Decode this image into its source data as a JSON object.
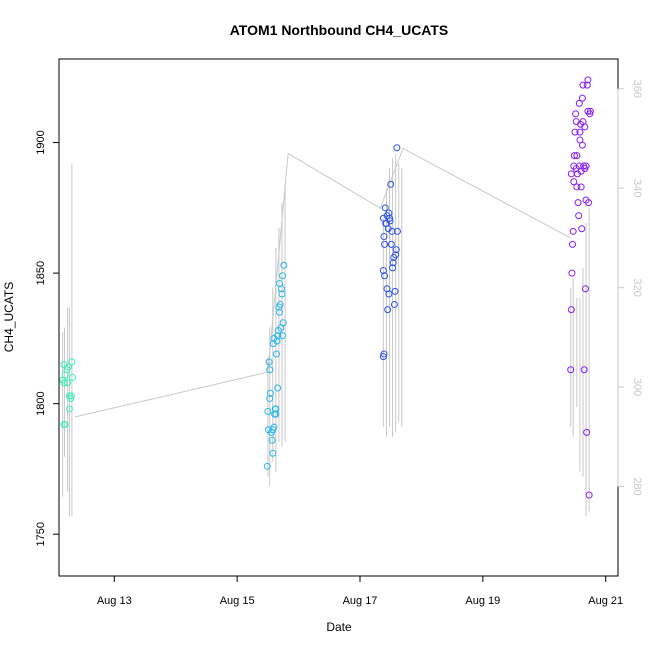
{
  "chart_data": {
    "type": "scatter",
    "title": "ATOM1 Northbound CH4_UCATS",
    "xlabel": "Date",
    "ylabel": "CH4_UCATS",
    "x_unit": "days in August",
    "xlim": [
      12.1,
      21.2
    ],
    "ylim": [
      1734,
      1932
    ],
    "y2lim": [
      262,
      366
    ],
    "x_ticks": [
      {
        "value": 13,
        "label": "Aug 13"
      },
      {
        "value": 15,
        "label": "Aug 15"
      },
      {
        "value": 17,
        "label": "Aug 17"
      },
      {
        "value": 19,
        "label": "Aug 19"
      },
      {
        "value": 21,
        "label": "Aug 21"
      }
    ],
    "y_ticks": [
      1750,
      1800,
      1850,
      1900
    ],
    "y2_ticks": [
      280,
      300,
      320,
      340,
      360
    ],
    "grid": false,
    "legend": "none",
    "colors": {
      "profile_line": "#c8c8c8",
      "right_axis": "#c8c8c8",
      "frame": "#000000"
    },
    "secondary_profile": {
      "description_units": "right axis",
      "vertical_spikes": [
        {
          "x": 12.16,
          "y_bottom": 278,
          "y_top": 311
        },
        {
          "x": 12.19,
          "y_bottom": 286,
          "y_top": 312
        },
        {
          "x": 12.24,
          "y_bottom": 279,
          "y_top": 316
        },
        {
          "x": 12.27,
          "y_bottom": 274,
          "y_top": 316
        },
        {
          "x": 12.31,
          "y_bottom": 274,
          "y_top": 345
        },
        {
          "x": 15.5,
          "y_bottom": 282,
          "y_top": 306
        },
        {
          "x": 15.53,
          "y_bottom": 280,
          "y_top": 312
        },
        {
          "x": 15.58,
          "y_bottom": 285,
          "y_top": 320
        },
        {
          "x": 15.63,
          "y_bottom": 283,
          "y_top": 328
        },
        {
          "x": 15.68,
          "y_bottom": 289,
          "y_top": 332
        },
        {
          "x": 15.73,
          "y_bottom": 288,
          "y_top": 337
        },
        {
          "x": 15.78,
          "y_bottom": 289,
          "y_top": 341
        },
        {
          "x": 17.38,
          "y_bottom": 292,
          "y_top": 334
        },
        {
          "x": 17.43,
          "y_bottom": 290,
          "y_top": 340
        },
        {
          "x": 17.48,
          "y_bottom": 292,
          "y_top": 344
        },
        {
          "x": 17.53,
          "y_bottom": 290,
          "y_top": 346
        },
        {
          "x": 17.58,
          "y_bottom": 291,
          "y_top": 347
        },
        {
          "x": 17.63,
          "y_bottom": 293,
          "y_top": 345
        },
        {
          "x": 17.68,
          "y_bottom": 292,
          "y_top": 344
        },
        {
          "x": 20.43,
          "y_bottom": 292,
          "y_top": 320
        },
        {
          "x": 20.47,
          "y_bottom": 290,
          "y_top": 322
        },
        {
          "x": 20.53,
          "y_bottom": 296,
          "y_top": 318
        },
        {
          "x": 20.58,
          "y_bottom": 283,
          "y_top": 318
        },
        {
          "x": 20.63,
          "y_bottom": 282,
          "y_top": 324
        },
        {
          "x": 20.68,
          "y_bottom": 274,
          "y_top": 333
        },
        {
          "x": 20.73,
          "y_bottom": 275,
          "y_top": 336
        }
      ],
      "connector": [
        {
          "x": 12.36,
          "y": 294
        },
        {
          "x": 15.5,
          "y": 303
        },
        {
          "x": 15.83,
          "y": 347
        },
        {
          "x": 17.33,
          "y": 336
        },
        {
          "x": 17.7,
          "y": 348
        },
        {
          "x": 20.43,
          "y": 330
        }
      ]
    },
    "series": [
      {
        "group": "Aug 12",
        "color": "#3ef2b2",
        "points": [
          [
            12.18,
            1792
          ],
          [
            12.2,
            1792
          ],
          [
            12.16,
            1809
          ],
          [
            12.18,
            1808
          ],
          [
            12.2,
            1811
          ],
          [
            12.18,
            1815
          ],
          [
            12.23,
            1813
          ],
          [
            12.25,
            1814
          ],
          [
            12.27,
            1803
          ],
          [
            12.29,
            1802
          ],
          [
            12.27,
            1798
          ],
          [
            12.31,
            1816
          ],
          [
            12.32,
            1810
          ],
          [
            12.24,
            1808
          ],
          [
            12.3,
            1803
          ]
        ]
      },
      {
        "group": "Aug 15",
        "color": "#27b9e8",
        "points": [
          [
            15.49,
            1776
          ],
          [
            15.5,
            1797
          ],
          [
            15.51,
            1790
          ],
          [
            15.52,
            1816
          ],
          [
            15.53,
            1813
          ],
          [
            15.53,
            1802
          ],
          [
            15.54,
            1804
          ],
          [
            15.56,
            1789
          ],
          [
            15.57,
            1786
          ],
          [
            15.58,
            1781
          ],
          [
            15.58,
            1790
          ],
          [
            15.59,
            1823
          ],
          [
            15.6,
            1825
          ],
          [
            15.61,
            1796
          ],
          [
            15.62,
            1798
          ],
          [
            15.63,
            1796
          ],
          [
            15.64,
            1819
          ],
          [
            15.65,
            1824
          ],
          [
            15.66,
            1806
          ],
          [
            15.67,
            1828
          ],
          [
            15.68,
            1837
          ],
          [
            15.69,
            1846
          ],
          [
            15.7,
            1838
          ],
          [
            15.71,
            1829
          ],
          [
            15.72,
            1844
          ],
          [
            15.73,
            1842
          ],
          [
            15.74,
            1849
          ],
          [
            15.75,
            1831
          ],
          [
            15.76,
            1853
          ],
          [
            15.74,
            1826
          ],
          [
            15.63,
            1798
          ],
          [
            15.6,
            1791
          ],
          [
            15.66,
            1826
          ],
          [
            15.69,
            1835
          ]
        ]
      },
      {
        "group": "Aug 17",
        "color": "#2e52ec",
        "points": [
          [
            17.38,
            1818
          ],
          [
            17.39,
            1819
          ],
          [
            17.38,
            1851
          ],
          [
            17.4,
            1849
          ],
          [
            17.39,
            1864
          ],
          [
            17.4,
            1861
          ],
          [
            17.38,
            1871
          ],
          [
            17.41,
            1875
          ],
          [
            17.43,
            1869
          ],
          [
            17.44,
            1844
          ],
          [
            17.45,
            1836
          ],
          [
            17.46,
            1867
          ],
          [
            17.47,
            1842
          ],
          [
            17.48,
            1871
          ],
          [
            17.49,
            1870
          ],
          [
            17.5,
            1884
          ],
          [
            17.51,
            1861
          ],
          [
            17.52,
            1866
          ],
          [
            17.53,
            1852
          ],
          [
            17.54,
            1854
          ],
          [
            17.55,
            1856
          ],
          [
            17.56,
            1838
          ],
          [
            17.57,
            1843
          ],
          [
            17.58,
            1857
          ],
          [
            17.59,
            1859
          ],
          [
            17.6,
            1898
          ],
          [
            17.61,
            1866
          ],
          [
            17.42,
            1869
          ],
          [
            17.44,
            1872
          ],
          [
            17.47,
            1873
          ]
        ]
      },
      {
        "group": "Aug 20",
        "color": "#8a1ef0",
        "points": [
          [
            20.43,
            1813
          ],
          [
            20.44,
            1836
          ],
          [
            20.45,
            1850
          ],
          [
            20.46,
            1861
          ],
          [
            20.47,
            1866
          ],
          [
            20.48,
            1891
          ],
          [
            20.49,
            1895
          ],
          [
            20.5,
            1904
          ],
          [
            20.51,
            1911
          ],
          [
            20.52,
            1908
          ],
          [
            20.53,
            1883
          ],
          [
            20.54,
            1888
          ],
          [
            20.55,
            1877
          ],
          [
            20.56,
            1872
          ],
          [
            20.57,
            1915
          ],
          [
            20.58,
            1904
          ],
          [
            20.59,
            1907
          ],
          [
            20.6,
            1883
          ],
          [
            20.61,
            1867
          ],
          [
            20.62,
            1917
          ],
          [
            20.63,
            1922
          ],
          [
            20.64,
            1891
          ],
          [
            20.65,
            1813
          ],
          [
            20.66,
            1906
          ],
          [
            20.67,
            1844
          ],
          [
            20.68,
            1878
          ],
          [
            20.69,
            1789
          ],
          [
            20.7,
            1922
          ],
          [
            20.71,
            1924
          ],
          [
            20.72,
            1877
          ],
          [
            20.73,
            1765
          ],
          [
            20.74,
            1911
          ],
          [
            20.75,
            1912
          ],
          [
            20.71,
            1912
          ],
          [
            20.62,
            1899
          ],
          [
            20.52,
            1890
          ],
          [
            20.57,
            1891
          ],
          [
            20.6,
            1889
          ],
          [
            20.48,
            1885
          ],
          [
            20.44,
            1888
          ],
          [
            20.68,
            1891
          ],
          [
            20.66,
            1890
          ],
          [
            20.58,
            1901
          ],
          [
            20.53,
            1895
          ],
          [
            20.63,
            1908
          ]
        ]
      }
    ]
  }
}
